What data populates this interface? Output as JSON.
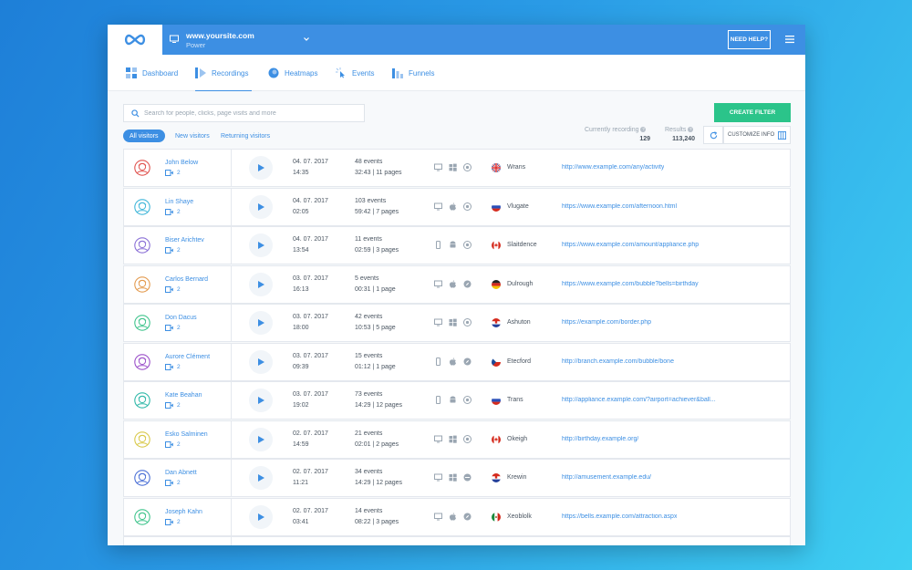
{
  "topbar": {
    "site_url": "www.yoursite.com",
    "site_plan": "Power",
    "help_label": "NEED HELP?"
  },
  "nav": {
    "tabs": [
      {
        "label": "Dashboard",
        "icon": "dashboard-icon",
        "active": false
      },
      {
        "label": "Recordings",
        "icon": "recordings-icon",
        "active": true
      },
      {
        "label": "Heatmaps",
        "icon": "heatmaps-icon",
        "active": false
      },
      {
        "label": "Events",
        "icon": "events-icon",
        "active": false
      },
      {
        "label": "Funnels",
        "icon": "funnels-icon",
        "active": false
      }
    ]
  },
  "toolbar": {
    "search_placeholder": "Search for people, clicks, page visits and more",
    "create_filter_label": "CREATE FILTER",
    "filters": [
      "All visitors",
      "New visitors",
      "Returning visitors"
    ],
    "currently_recording_label": "Currently recording",
    "currently_recording_value": "129",
    "results_label": "Results",
    "results_value": "113,240",
    "customize_label": "CUSTOMIZE INFO"
  },
  "colors": {
    "accent": "#3d8fe3",
    "create_filter": "#2bc48a"
  },
  "rows": [
    {
      "name": "John Below",
      "recordings": "2",
      "date": "04. 07. 2017",
      "time": "14:35",
      "events": "48 events",
      "duration": "32:43 | 11 pages",
      "devices": [
        "desktop",
        "windows",
        "chrome"
      ],
      "flag": "uk",
      "city": "Wrans",
      "url": "http://www.example.com/any/activity",
      "avatar_color": "#e0524e"
    },
    {
      "name": "Lin Shaye",
      "recordings": "2",
      "date": "04. 07. 2017",
      "time": "02:05",
      "events": "103 events",
      "duration": "59:42 | 7 pages",
      "devices": [
        "desktop",
        "apple",
        "chrome"
      ],
      "flag": "ru",
      "city": "Vlugate",
      "url": "https://www.example.com/afternoon.html",
      "avatar_color": "#3fb6d9"
    },
    {
      "name": "Biser Arichtev",
      "recordings": "2",
      "date": "04. 07. 2017",
      "time": "13:54",
      "events": "11 events",
      "duration": "02:59 | 3 pages",
      "devices": [
        "mobile",
        "android",
        "chrome"
      ],
      "flag": "ca",
      "city": "Slaitdence",
      "url": "https://www.example.com/amount/appliance.php",
      "avatar_color": "#8a6fd6"
    },
    {
      "name": "Carlos Bernard",
      "recordings": "2",
      "date": "03. 07. 2017",
      "time": "16:13",
      "events": "5 events",
      "duration": "00:31 | 1 page",
      "devices": [
        "desktop",
        "apple",
        "safari"
      ],
      "flag": "de",
      "city": "Dulrough",
      "url": "https://www.example.com/bubble?bells=birthday",
      "avatar_color": "#e39a4e"
    },
    {
      "name": "Don Dacus",
      "recordings": "2",
      "date": "03. 07. 2017",
      "time": "18:00",
      "events": "42 events",
      "duration": "10:53  |  5 page",
      "devices": [
        "desktop",
        "windows",
        "chrome"
      ],
      "flag": "hr",
      "city": "Ashuton",
      "url": "https://example.com/border.php",
      "avatar_color": "#3fc48c"
    },
    {
      "name": "Aurore Clément",
      "recordings": "2",
      "date": "03. 07. 2017",
      "time": "09:39",
      "events": "15 events",
      "duration": "01:12 | 1 page",
      "devices": [
        "mobile",
        "apple",
        "safari"
      ],
      "flag": "cz",
      "city": "Etecford",
      "url": "http://branch.example.com/bubble/bone",
      "avatar_color": "#9b4fc9"
    },
    {
      "name": "Kate Beahan",
      "recordings": "2",
      "date": "03. 07. 2017",
      "time": "19:02",
      "events": "73 events",
      "duration": "14:29 | 12 pages",
      "devices": [
        "mobile",
        "android",
        "chrome"
      ],
      "flag": "ru",
      "city": "Trans",
      "url": "http://appliance.example.com/?airport=achiever&ball...",
      "avatar_color": "#2fb8a8"
    },
    {
      "name": "Esko Salminen",
      "recordings": "2",
      "date": "02. 07. 2017",
      "time": "14:59",
      "events": "21 events",
      "duration": "02:01 | 2 pages",
      "devices": [
        "desktop",
        "windows",
        "chrome"
      ],
      "flag": "ca",
      "city": "Okeigh",
      "url": "http://birthday.example.org/",
      "avatar_color": "#d9c94a"
    },
    {
      "name": "Dan Abnett",
      "recordings": "2",
      "date": "02. 07. 2017",
      "time": "11:21",
      "events": "34 events",
      "duration": "14:29 | 12 pages",
      "devices": [
        "desktop",
        "windows",
        "other"
      ],
      "flag": "hr",
      "city": "Krewin",
      "url": "http://amusement.example.edu/",
      "avatar_color": "#4a6fd6"
    },
    {
      "name": "Joseph Kahn",
      "recordings": "2",
      "date": "02. 07. 2017",
      "time": "03:41",
      "events": "14 events",
      "duration": "08:22 | 3 pages",
      "devices": [
        "desktop",
        "apple",
        "safari"
      ],
      "flag": "mx",
      "city": "Xeoblolk",
      "url": "https://bells.example.com/attraction.aspx",
      "avatar_color": "#3fc48c"
    }
  ]
}
